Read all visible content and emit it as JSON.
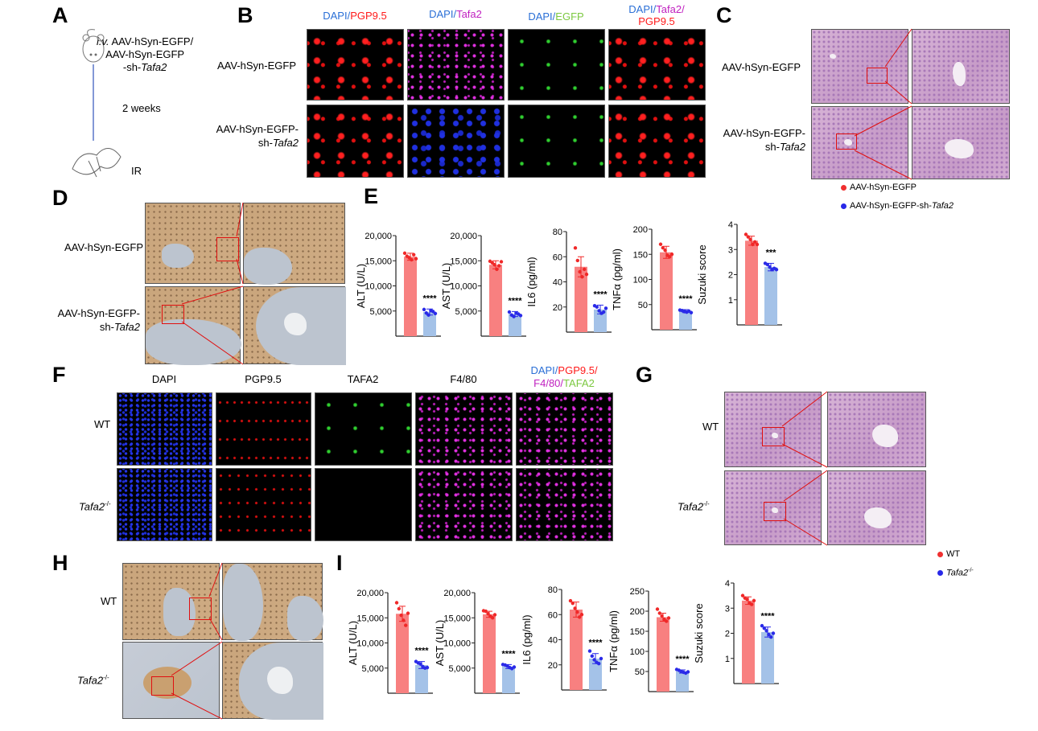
{
  "panels": {
    "A": "A",
    "B": "B",
    "C": "C",
    "D": "D",
    "E": "E",
    "F": "F",
    "G": "G",
    "H": "H",
    "I": "I"
  },
  "panelA": {
    "route": "i.v.",
    "line1": " AAV-hSyn-EGFP/",
    "line2": "AAV-hSyn-EGFP",
    "line3a": "-sh-",
    "line3b": "Tafa2",
    "interval": "2 weeks",
    "procedure": "IR"
  },
  "groupsAAV": {
    "ctrl": "AAV-hSyn-EGFP",
    "kd_a": "AAV-hSyn-EGFP-",
    "kd_b": "sh-",
    "kd_c": "Tafa2"
  },
  "panelB": {
    "headers": [
      [
        {
          "t": "DAPI",
          "c": "#2a6fd6"
        },
        {
          "t": "/",
          "c": "#2a6fd6"
        },
        {
          "t": "PGP9.5",
          "c": "#ff1a1a"
        }
      ],
      [
        {
          "t": "DAPI",
          "c": "#2a6fd6"
        },
        {
          "t": "/",
          "c": "#2a6fd6"
        },
        {
          "t": "Tafa2",
          "c": "#c020c0"
        }
      ],
      [
        {
          "t": "DAPI",
          "c": "#2a6fd6"
        },
        {
          "t": "/",
          "c": "#2a6fd6"
        },
        {
          "t": "EGFP",
          "c": "#7cc840"
        }
      ],
      [
        {
          "t": "DAPI",
          "c": "#2a6fd6"
        },
        {
          "t": "/",
          "c": "#2a6fd6"
        },
        {
          "t": "Tafa2",
          "c": "#c020c0"
        },
        {
          "t": "/",
          "c": "#c020c0"
        }
      ]
    ],
    "header4_line2": "PGP9.5"
  },
  "legendE": {
    "ctrl": "AAV-hSyn-EGFP",
    "kd_prefix": "AAV-hSyn-EGFP-sh-",
    "kd_gene": "Tafa2",
    "ctrl_color": "#f03030",
    "kd_color": "#2828e8"
  },
  "panelF": {
    "headers": {
      "dapi": "DAPI",
      "pgp": "PGP9.5",
      "tafa2": "TAFA2",
      "f480": "F4/80"
    },
    "merge1": [
      {
        "t": "DAPI",
        "c": "#2a6fd6"
      },
      {
        "t": "/",
        "c": "#2a6fd6"
      },
      {
        "t": "PGP9.5",
        "c": "#ff1a1a"
      },
      {
        "t": "/",
        "c": "#ff1a1a"
      }
    ],
    "merge2": [
      {
        "t": "F4/80",
        "c": "#c020c0"
      },
      {
        "t": "/",
        "c": "#c020c0"
      },
      {
        "t": "TAFA2",
        "c": "#7cc840"
      }
    ],
    "colors": {
      "dapi": "#2a6fd6",
      "pgp": "#ff1a1a",
      "tafa2": "#7cc840",
      "f480": "#c020c0"
    }
  },
  "genotypes": {
    "wt": "WT",
    "ko_gene": "Tafa2",
    "ko_sup": "-/-"
  },
  "legendI": {
    "wt": "WT",
    "ko_gene": "Tafa2",
    "ko_sup": "-/-"
  },
  "chart_data": [
    {
      "panel": "E",
      "type": "bar",
      "ylabel": "ALT (U/L)",
      "ylim": [
        0,
        20000
      ],
      "ticks": [
        5000,
        10000,
        15000,
        20000
      ],
      "tick_labels": [
        "5,000",
        "10,000",
        "15,000",
        "20,000"
      ],
      "values": [
        15800,
        4800
      ],
      "sd": [
        700,
        600
      ],
      "points": [
        [
          16500,
          15900,
          15600,
          15200,
          16200,
          15400
        ],
        [
          5300,
          4600,
          4200,
          5100,
          4900,
          4500
        ]
      ],
      "significance": "****"
    },
    {
      "panel": "E",
      "type": "bar",
      "ylabel": "AST (U/L)",
      "ylim": [
        0,
        20000
      ],
      "ticks": [
        5000,
        10000,
        15000,
        20000
      ],
      "tick_labels": [
        "5,000",
        "10,000",
        "15,000",
        "20,000"
      ],
      "values": [
        14200,
        4400
      ],
      "sd": [
        800,
        500
      ],
      "points": [
        [
          14900,
          14600,
          14200,
          13300,
          14000,
          14800
        ],
        [
          4800,
          4200,
          3900,
          4600,
          4400,
          4100
        ]
      ],
      "significance": "****"
    },
    {
      "panel": "E",
      "type": "bar",
      "ylabel": "IL6 (pg/ml)",
      "ylim": [
        0,
        80
      ],
      "ticks": [
        20,
        40,
        60,
        80
      ],
      "tick_labels": [
        "20",
        "40",
        "60",
        "80"
      ],
      "values": [
        52,
        18
      ],
      "sd": [
        8,
        3.5
      ],
      "points": [
        [
          67,
          57,
          48,
          44,
          50,
          46
        ],
        [
          21,
          20,
          17,
          15,
          16,
          19
        ]
      ],
      "significance": "****"
    },
    {
      "panel": "E",
      "type": "bar",
      "ylabel": "TNFα (pg/ml)",
      "ylim": [
        0,
        200
      ],
      "ticks": [
        50,
        100,
        150,
        200
      ],
      "tick_labels": [
        "50",
        "100",
        "150",
        "200"
      ],
      "values": [
        154,
        37
      ],
      "sd": [
        12,
        3
      ],
      "points": [
        [
          170,
          163,
          158,
          148,
          145,
          150
        ],
        [
          39,
          38,
          36,
          35,
          37,
          34
        ]
      ],
      "significance": "****"
    },
    {
      "panel": "E",
      "type": "bar",
      "ylabel": "Suzuki score",
      "ylim": [
        0,
        4
      ],
      "ticks": [
        1,
        2,
        3,
        4
      ],
      "tick_labels": [
        "1",
        "2",
        "3",
        "4"
      ],
      "values": [
        3.35,
        2.3
      ],
      "sd": [
        0.18,
        0.15
      ],
      "points": [
        [
          3.6,
          3.5,
          3.4,
          3.2,
          3.3,
          3.2
        ],
        [
          2.45,
          2.4,
          2.3,
          2.2,
          2.25,
          2.2
        ]
      ],
      "significance": "***"
    },
    {
      "panel": "I",
      "type": "bar",
      "ylabel": "ALT (U/L)",
      "ylim": [
        0,
        20000
      ],
      "ticks": [
        5000,
        10000,
        15000,
        20000
      ],
      "tick_labels": [
        "5,000",
        "10,000",
        "15,000",
        "20,000"
      ],
      "values": [
        15800,
        5600
      ],
      "sd": [
        1500,
        700
      ],
      "points": [
        [
          18000,
          16800,
          15500,
          14500,
          13500,
          15900
        ],
        [
          6300,
          6000,
          5800,
          5300,
          5000,
          5100
        ]
      ],
      "significance": "****"
    },
    {
      "panel": "I",
      "type": "bar",
      "ylabel": "AST (U/L)",
      "ylim": [
        0,
        20000
      ],
      "ticks": [
        5000,
        10000,
        15000,
        20000
      ],
      "tick_labels": [
        "5,000",
        "10,000",
        "15,000",
        "20,000"
      ],
      "values": [
        15700,
        5300
      ],
      "sd": [
        600,
        400
      ],
      "points": [
        [
          16400,
          16300,
          15800,
          15300,
          15000,
          15600
        ],
        [
          5700,
          5600,
          5400,
          5100,
          4900,
          5200
        ]
      ],
      "significance": "****"
    },
    {
      "panel": "I",
      "type": "bar",
      "ylabel": "IL6 (pg/ml)",
      "ylim": [
        0,
        80
      ],
      "ticks": [
        20,
        40,
        60,
        80
      ],
      "tick_labels": [
        "20",
        "40",
        "60",
        "80"
      ],
      "values": [
        64,
        25
      ],
      "sd": [
        6,
        4
      ],
      "points": [
        [
          71,
          69,
          65,
          62,
          58,
          60
        ],
        [
          31,
          27,
          24,
          22,
          21,
          25
        ]
      ],
      "significance": "****"
    },
    {
      "panel": "I",
      "type": "bar",
      "ylabel": "TNFα (pg/ml)",
      "ylim": [
        0,
        250
      ],
      "ticks": [
        50,
        100,
        150,
        200,
        250
      ],
      "tick_labels": [
        "50",
        "100",
        "150",
        "200",
        "250"
      ],
      "values": [
        185,
        50
      ],
      "sd": [
        10,
        4
      ],
      "points": [
        [
          205,
          195,
          188,
          180,
          175,
          183
        ],
        [
          55,
          53,
          50,
          48,
          46,
          49
        ]
      ],
      "significance": "****"
    },
    {
      "panel": "I",
      "type": "bar",
      "ylabel": "Suzuki score",
      "ylim": [
        0,
        4
      ],
      "ticks": [
        1,
        2,
        3,
        4
      ],
      "tick_labels": [
        "1",
        "2",
        "3",
        "4"
      ],
      "values": [
        3.3,
        2.05
      ],
      "sd": [
        0.15,
        0.2
      ],
      "points": [
        [
          3.5,
          3.4,
          3.35,
          3.2,
          3.15,
          3.3
        ],
        [
          2.3,
          2.2,
          2.1,
          1.95,
          1.85,
          2.0
        ]
      ],
      "significance": "****"
    }
  ]
}
